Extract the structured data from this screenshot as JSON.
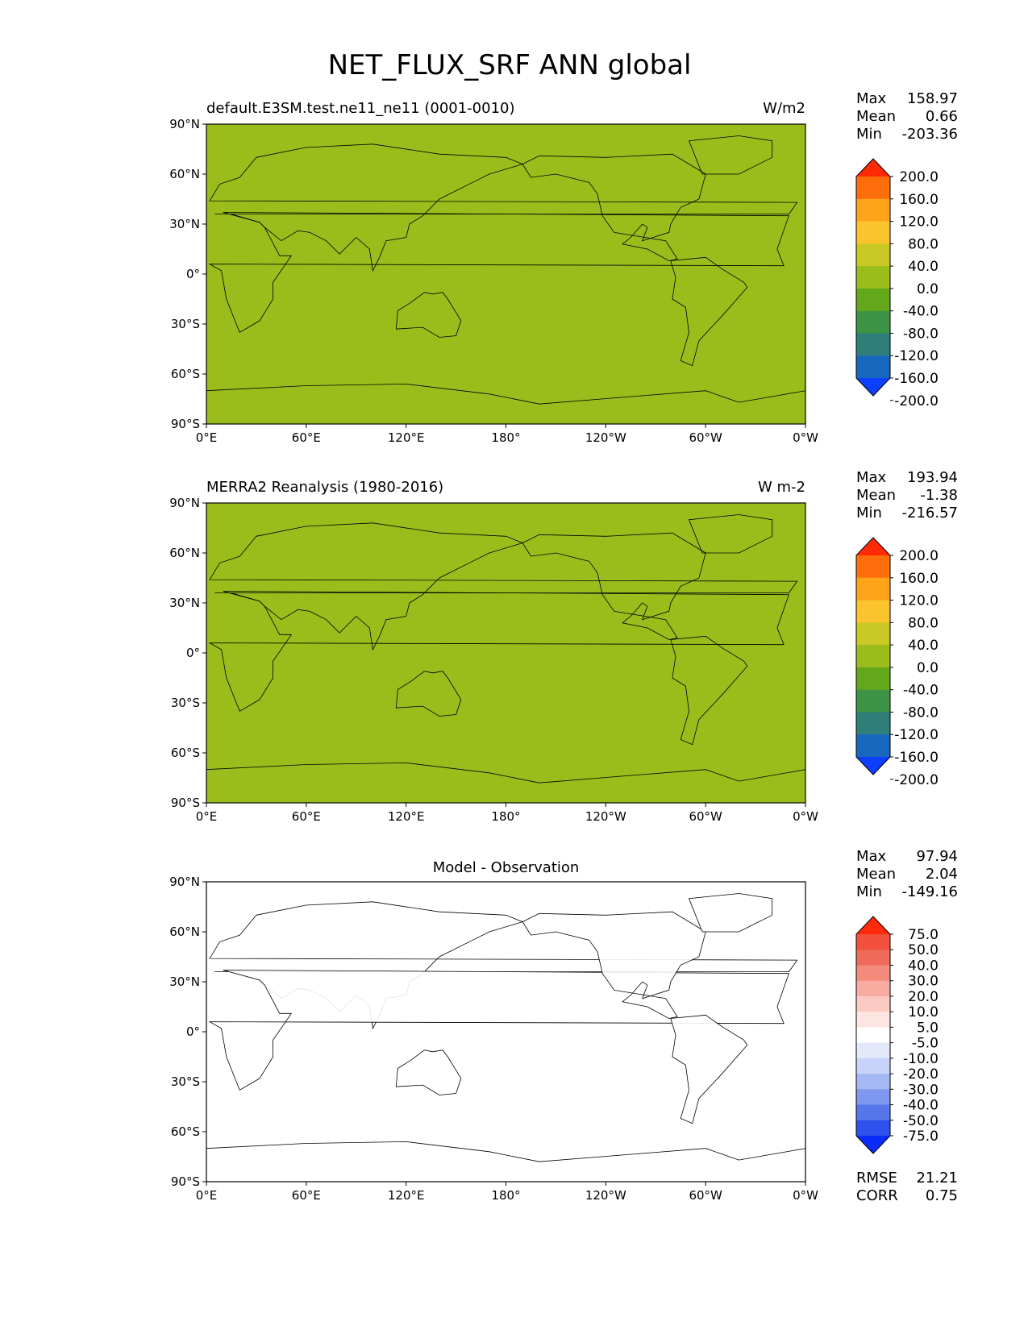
{
  "figure_title": "NET_FLUX_SRF ANN global",
  "chart_data": [
    {
      "type": "heatmap",
      "panel": "test",
      "title_left": "default.E3SM.test.ne11_ne11 (0001-0010)",
      "title_center": "",
      "units": "W/m2",
      "x_ticks": [
        "0°E",
        "60°E",
        "120°E",
        "180°",
        "120°W",
        "60°W",
        "0°W"
      ],
      "y_ticks": [
        "90°N",
        "60°N",
        "30°N",
        "0°",
        "30°S",
        "60°S",
        "90°S"
      ],
      "xlim": [
        0,
        360
      ],
      "ylim": [
        -90,
        90
      ],
      "stats": [
        {
          "label": "Max",
          "value": "158.97"
        },
        {
          "label": "Mean",
          "value": "0.66"
        },
        {
          "label": "Min",
          "value": "-203.36"
        }
      ],
      "colorbar": {
        "levels": [
          -200,
          -160,
          -120,
          -80,
          -40,
          0,
          40,
          80,
          120,
          160,
          200
        ],
        "tick_labels": [
          "200.0",
          "160.0",
          "120.0",
          "80.0",
          "40.0",
          "0.0",
          "-40.0",
          "-80.0",
          "-120.0",
          "-160.0",
          "-200.0"
        ],
        "colors": [
          "#ff2a05",
          "#ff6e0a",
          "#ffa319",
          "#fbc42c",
          "#c9c824",
          "#9bbd1c",
          "#63a81a",
          "#3d9444",
          "#2e7f7a",
          "#1767bf",
          "#0d3fff"
        ],
        "extend": "both"
      }
    },
    {
      "type": "heatmap",
      "panel": "reference",
      "title_left": "MERRA2 Reanalysis (1980-2016)",
      "title_center": "",
      "units": "W m-2",
      "x_ticks": [
        "0°E",
        "60°E",
        "120°E",
        "180°",
        "120°W",
        "60°W",
        "0°W"
      ],
      "y_ticks": [
        "90°N",
        "60°N",
        "30°N",
        "0°",
        "30°S",
        "60°S",
        "90°S"
      ],
      "xlim": [
        0,
        360
      ],
      "ylim": [
        -90,
        90
      ],
      "stats": [
        {
          "label": "Max",
          "value": "193.94"
        },
        {
          "label": "Mean",
          "value": "-1.38"
        },
        {
          "label": "Min",
          "value": "-216.57"
        }
      ],
      "colorbar": {
        "levels": [
          -200,
          -160,
          -120,
          -80,
          -40,
          0,
          40,
          80,
          120,
          160,
          200
        ],
        "tick_labels": [
          "200.0",
          "160.0",
          "120.0",
          "80.0",
          "40.0",
          "0.0",
          "-40.0",
          "-80.0",
          "-120.0",
          "-160.0",
          "-200.0"
        ],
        "colors": [
          "#ff2a05",
          "#ff6e0a",
          "#ffa319",
          "#fbc42c",
          "#c9c824",
          "#9bbd1c",
          "#63a81a",
          "#3d9444",
          "#2e7f7a",
          "#1767bf",
          "#0d3fff"
        ],
        "extend": "both"
      }
    },
    {
      "type": "heatmap",
      "panel": "difference",
      "title_left": "",
      "title_center": "Model - Observation",
      "units": "",
      "x_ticks": [
        "0°E",
        "60°E",
        "120°E",
        "180°",
        "120°W",
        "60°W",
        "0°W"
      ],
      "y_ticks": [
        "90°N",
        "60°N",
        "30°N",
        "0°",
        "30°S",
        "60°S",
        "90°S"
      ],
      "xlim": [
        0,
        360
      ],
      "ylim": [
        -90,
        90
      ],
      "stats": [
        {
          "label": "Max",
          "value": "97.94"
        },
        {
          "label": "Mean",
          "value": "2.04"
        },
        {
          "label": "Min",
          "value": "-149.16"
        }
      ],
      "metrics": [
        {
          "label": "RMSE",
          "value": "21.21"
        },
        {
          "label": "CORR",
          "value": "0.75"
        }
      ],
      "colorbar": {
        "levels": [
          -75,
          -50,
          -40,
          -30,
          -20,
          -10,
          -5,
          5,
          10,
          20,
          30,
          40,
          50,
          75
        ],
        "tick_labels": [
          "75.0",
          "50.0",
          "40.0",
          "30.0",
          "20.0",
          "10.0",
          "5.0",
          "-5.0",
          "-10.0",
          "-20.0",
          "-30.0",
          "-40.0",
          "-50.0",
          "-75.0"
        ],
        "colors": [
          "#ff2a0a",
          "#f4503e",
          "#f06a5a",
          "#f48a7c",
          "#f8aba0",
          "#fbcbc3",
          "#fde6e2",
          "#ffffff",
          "#e3e9fb",
          "#c7d3f8",
          "#a4b8f4",
          "#7f98ef",
          "#5676ec",
          "#2f52ee",
          "#0a2cfb"
        ],
        "extend": "both"
      }
    }
  ]
}
